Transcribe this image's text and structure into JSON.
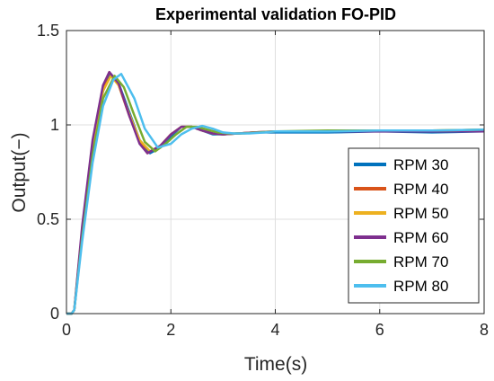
{
  "chart_data": {
    "type": "line",
    "title": "Experimental validation FO-PID",
    "xlabel": "Time(s)",
    "ylabel": "Output(−)",
    "xlim": [
      0,
      8
    ],
    "ylim": [
      0,
      1.5
    ],
    "xticks": [
      0,
      2,
      4,
      6,
      8
    ],
    "yticks": [
      0,
      0.5,
      1,
      1.5
    ],
    "xtick_labels": [
      "0",
      "2",
      "4",
      "6",
      "8"
    ],
    "ytick_labels": [
      "0",
      "0.5",
      "1",
      "1.5"
    ],
    "grid": true,
    "legend_position": "lower-right",
    "series": [
      {
        "name": "RPM 30",
        "color": "#0072BD",
        "x": [
          0,
          0.1,
          0.15,
          0.3,
          0.5,
          0.7,
          0.85,
          1.0,
          1.2,
          1.4,
          1.6,
          1.8,
          2.0,
          2.2,
          2.4,
          2.6,
          2.8,
          3.0,
          3.3,
          3.6,
          4.0,
          5.0,
          6.0,
          7.0,
          8.0
        ],
        "y": [
          0,
          0,
          0.02,
          0.42,
          0.88,
          1.18,
          1.27,
          1.22,
          1.07,
          0.92,
          0.85,
          0.88,
          0.94,
          0.99,
          0.99,
          0.97,
          0.95,
          0.95,
          0.955,
          0.96,
          0.96,
          0.96,
          0.965,
          0.96,
          0.965
        ]
      },
      {
        "name": "RPM 40",
        "color": "#D95319",
        "x": [
          0,
          0.1,
          0.15,
          0.3,
          0.5,
          0.7,
          0.82,
          1.0,
          1.2,
          1.4,
          1.55,
          1.8,
          2.0,
          2.2,
          2.4,
          2.6,
          2.8,
          3.0,
          3.3,
          3.6,
          4.0,
          5.0,
          6.0,
          7.0,
          8.0
        ],
        "y": [
          0,
          0,
          0.02,
          0.44,
          0.9,
          1.2,
          1.28,
          1.21,
          1.05,
          0.91,
          0.85,
          0.89,
          0.95,
          0.99,
          0.99,
          0.97,
          0.955,
          0.95,
          0.955,
          0.96,
          0.965,
          0.965,
          0.97,
          0.965,
          0.97
        ]
      },
      {
        "name": "RPM 50",
        "color": "#EDB120",
        "x": [
          0,
          0.1,
          0.15,
          0.3,
          0.5,
          0.7,
          0.85,
          1.0,
          1.2,
          1.4,
          1.6,
          1.8,
          2.0,
          2.2,
          2.4,
          2.6,
          2.8,
          3.0,
          3.3,
          3.6,
          4.0,
          5.0,
          6.0,
          7.0,
          8.0
        ],
        "y": [
          0,
          0,
          0.02,
          0.43,
          0.89,
          1.18,
          1.26,
          1.21,
          1.06,
          0.92,
          0.86,
          0.89,
          0.95,
          0.99,
          0.99,
          0.97,
          0.955,
          0.95,
          0.955,
          0.96,
          0.965,
          0.965,
          0.97,
          0.97,
          0.975
        ]
      },
      {
        "name": "RPM 60",
        "color": "#7E2F8E",
        "x": [
          0,
          0.1,
          0.15,
          0.3,
          0.5,
          0.7,
          0.82,
          1.0,
          1.2,
          1.4,
          1.55,
          1.8,
          2.0,
          2.2,
          2.4,
          2.6,
          2.8,
          3.0,
          3.3,
          3.6,
          4.0,
          5.0,
          6.0,
          7.0,
          8.0
        ],
        "y": [
          0,
          0,
          0.02,
          0.46,
          0.92,
          1.21,
          1.28,
          1.22,
          1.05,
          0.9,
          0.85,
          0.89,
          0.95,
          0.99,
          0.99,
          0.97,
          0.955,
          0.95,
          0.955,
          0.96,
          0.965,
          0.965,
          0.965,
          0.965,
          0.965
        ]
      },
      {
        "name": "RPM 70",
        "color": "#77AC30",
        "x": [
          0,
          0.1,
          0.15,
          0.3,
          0.5,
          0.7,
          0.92,
          1.1,
          1.3,
          1.5,
          1.7,
          1.9,
          2.1,
          2.3,
          2.5,
          2.7,
          2.9,
          3.1,
          3.4,
          3.7,
          4.0,
          5.0,
          6.0,
          7.0,
          8.0
        ],
        "y": [
          0,
          0,
          0.02,
          0.4,
          0.84,
          1.14,
          1.26,
          1.2,
          1.05,
          0.91,
          0.86,
          0.9,
          0.95,
          0.99,
          0.99,
          0.975,
          0.96,
          0.955,
          0.955,
          0.96,
          0.965,
          0.97,
          0.97,
          0.97,
          0.975
        ]
      },
      {
        "name": "RPM 80",
        "color": "#4DBEEE",
        "x": [
          0,
          0.1,
          0.15,
          0.3,
          0.5,
          0.7,
          0.9,
          1.05,
          1.3,
          1.5,
          1.75,
          2.0,
          2.2,
          2.4,
          2.6,
          2.8,
          3.0,
          3.2,
          3.5,
          3.8,
          4.0,
          5.0,
          6.0,
          7.0,
          8.0
        ],
        "y": [
          0,
          0,
          0.02,
          0.38,
          0.8,
          1.1,
          1.24,
          1.27,
          1.14,
          0.98,
          0.88,
          0.9,
          0.95,
          0.98,
          0.995,
          0.98,
          0.96,
          0.955,
          0.955,
          0.96,
          0.965,
          0.965,
          0.97,
          0.97,
          0.975
        ]
      }
    ]
  }
}
